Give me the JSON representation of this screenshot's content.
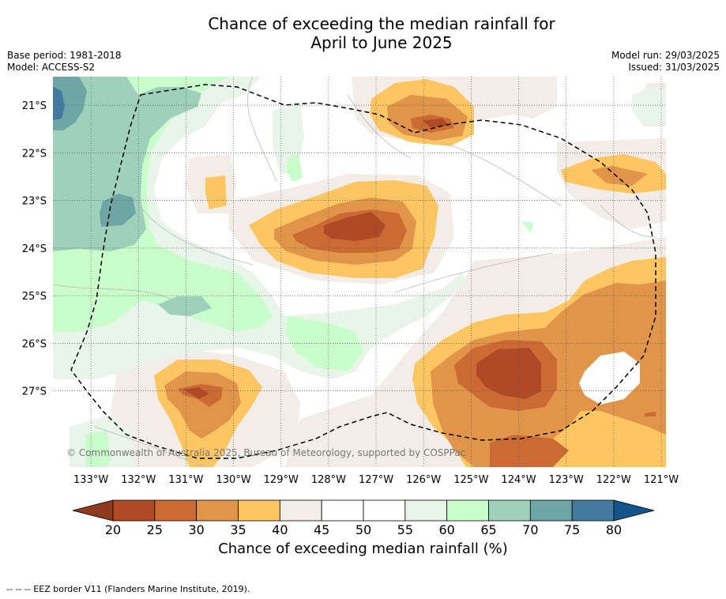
{
  "title_line1": "Chance of exceeding the median rainfall for",
  "title_line2": "April to June 2025",
  "meta_left": [
    "Base period: 1981-2018",
    "Model: ACCESS-S2"
  ],
  "meta_right": [
    "Model run: 29/03/2025",
    "Issued: 31/03/2025"
  ],
  "map": {
    "lon_labels": [
      "133°W",
      "132°W",
      "131°W",
      "130°W",
      "129°W",
      "128°W",
      "127°W",
      "126°W",
      "125°W",
      "124°W",
      "123°W",
      "122°W",
      "121°W"
    ],
    "lat_labels": [
      "21°S",
      "22°S",
      "23°S",
      "24°S",
      "25°S",
      "26°S",
      "27°S"
    ],
    "lon_range": [
      -133.8,
      -120.9
    ],
    "lat_range": [
      -28.6,
      -20.4
    ],
    "copyright": "© Commonwealth of Australia 2025, Bureau of Meteorology, supported by COSPPac",
    "border_style": "dashed"
  },
  "colorbar": {
    "ticks": [
      "20",
      "25",
      "30",
      "35",
      "40",
      "45",
      "50",
      "55",
      "60",
      "65",
      "70",
      "75",
      "80"
    ],
    "colors": [
      "#8f3a1f",
      "#b04a26",
      "#cc6a33",
      "#e0954a",
      "#fdc663",
      "#f2ede7",
      "#ffffff",
      "#ffffff",
      "#e9f5e8",
      "#c9fdcb",
      "#9ed0bc",
      "#6ea5a5",
      "#4479a0",
      "#14548c"
    ],
    "label": "Chance of exceeding median rainfall (%)"
  },
  "footnote": "--  --  -- EEZ border V11 (Flanders Marine Institute, 2019)."
}
